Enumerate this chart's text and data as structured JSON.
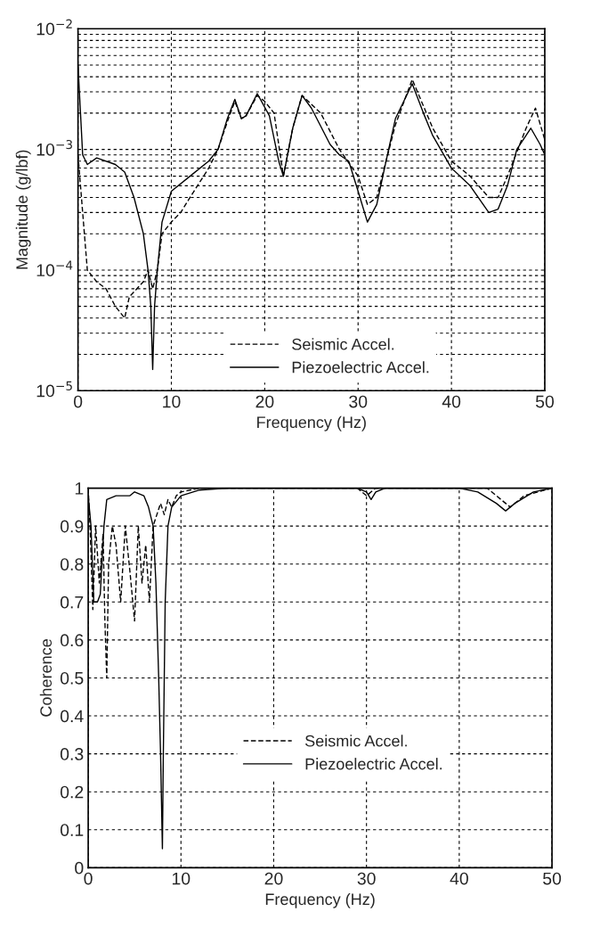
{
  "chart_data": [
    {
      "type": "line",
      "xlabel": "Frequency (Hz)",
      "ylabel": "Magnitude (g/lbf)",
      "log": "y",
      "xlim": [
        0,
        50
      ],
      "xticks": [
        0,
        10,
        20,
        30,
        40,
        50
      ],
      "ylim": [
        1e-05,
        0.01
      ],
      "yticks": [
        {
          "value": 1e-05,
          "label": "10$^{−5}$"
        },
        {
          "value": 2e-05,
          "label": null
        },
        {
          "value": 3e-05,
          "label": null
        },
        {
          "value": 4e-05,
          "label": null
        },
        {
          "value": 5e-05,
          "label": null
        },
        {
          "value": 6e-05,
          "label": null
        },
        {
          "value": 7e-05,
          "label": null
        },
        {
          "value": 8e-05,
          "label": null
        },
        {
          "value": 9e-05,
          "label": null
        },
        {
          "value": 0.0001,
          "label": "10$^{−4}$"
        },
        {
          "value": 0.0002,
          "label": null
        },
        {
          "value": 0.0003,
          "label": null
        },
        {
          "value": 0.0004,
          "label": null
        },
        {
          "value": 0.0005,
          "label": null
        },
        {
          "value": 0.0006,
          "label": null
        },
        {
          "value": 0.0007,
          "label": null
        },
        {
          "value": 0.0008,
          "label": null
        },
        {
          "value": 0.0009,
          "label": null
        },
        {
          "value": 0.001,
          "label": "10$^{−3}$"
        },
        {
          "value": 0.002,
          "label": null
        },
        {
          "value": 0.003,
          "label": null
        },
        {
          "value": 0.004,
          "label": null
        },
        {
          "value": 0.005,
          "label": null
        },
        {
          "value": 0.006,
          "label": null
        },
        {
          "value": 0.007,
          "label": null
        },
        {
          "value": 0.008,
          "label": null
        },
        {
          "value": 0.009,
          "label": null
        },
        {
          "value": 0.01,
          "label": "10$^{−2}$"
        }
      ],
      "grid": true,
      "legend": "bottom",
      "series": [
        {
          "name": "Seismic Accel.",
          "color": "#000000",
          "line_style": "dashed",
          "x": [
            0,
            1,
            2,
            3,
            4,
            5,
            5.5,
            7,
            7.5,
            8,
            8.5,
            9,
            10,
            11,
            12,
            14,
            15,
            16,
            16.8,
            17.5,
            18,
            19.2,
            20,
            21,
            22,
            23,
            24,
            26,
            28,
            30,
            31,
            32,
            34,
            35.8,
            38,
            40,
            42,
            44,
            45,
            46,
            48,
            49,
            50
          ],
          "values": [
            0.0009,
            0.0001,
            8e-05,
            7e-05,
            5e-05,
            4e-05,
            6e-05,
            8e-05,
            0.0001,
            7e-05,
            0.0001,
            0.0002,
            0.00025,
            0.0003,
            0.0004,
            0.0007,
            0.001,
            0.0017,
            0.0025,
            0.0018,
            0.0019,
            0.0028,
            0.0025,
            0.002,
            0.0006,
            0.0015,
            0.0028,
            0.002,
            0.001,
            0.0006,
            0.00035,
            0.0004,
            0.0016,
            0.0038,
            0.0015,
            0.0008,
            0.0006,
            0.0004,
            0.0004,
            0.0006,
            0.0015,
            0.0022,
            0.0012
          ]
        },
        {
          "name": "Piezoelectric Accel.",
          "color": "#000000",
          "line_style": "solid",
          "x": [
            0,
            0.5,
            1,
            2,
            4,
            5,
            6,
            7,
            7.5,
            7.8,
            8,
            8.2,
            8.5,
            9,
            10,
            12,
            14,
            15,
            16,
            16.8,
            17.5,
            18,
            19.2,
            20.5,
            21.5,
            22,
            23,
            24,
            25,
            27,
            28,
            29,
            30,
            31,
            32,
            33,
            34,
            35.8,
            37,
            38,
            40,
            42,
            44,
            45,
            46,
            47,
            48.5,
            49.5,
            50
          ],
          "values": [
            0.005,
            0.0009,
            0.00075,
            0.00085,
            0.00075,
            0.00065,
            0.0004,
            0.0002,
            0.0001,
            5e-05,
            1.5e-05,
            5e-05,
            0.0001,
            0.00025,
            0.00045,
            0.0006,
            0.0008,
            0.001,
            0.0018,
            0.0026,
            0.0018,
            0.0019,
            0.0029,
            0.0019,
            0.0008,
            0.0006,
            0.0015,
            0.0028,
            0.0022,
            0.0011,
            0.0009,
            0.0008,
            0.00045,
            0.00025,
            0.00035,
            0.0008,
            0.0018,
            0.0035,
            0.002,
            0.0013,
            0.0007,
            0.0005,
            0.0003,
            0.00032,
            0.0005,
            0.001,
            0.0015,
            0.0011,
            0.0009
          ]
        }
      ]
    },
    {
      "type": "line",
      "xlabel": "Frequency (Hz)",
      "ylabel": "Coherence",
      "xlim": [
        0,
        50
      ],
      "xticks": [
        0,
        10,
        20,
        30,
        40,
        50
      ],
      "ylim": [
        0,
        1
      ],
      "yticks": [
        0,
        0.1,
        0.2,
        0.3,
        0.4,
        0.5,
        0.6,
        0.7,
        0.8,
        0.9,
        1
      ],
      "grid": true,
      "legend": "center",
      "series": [
        {
          "name": "Seismic Accel.",
          "color": "#000000",
          "line_style": "dashed",
          "x": [
            0,
            0.2,
            0.5,
            0.8,
            1.2,
            1.6,
            1.8,
            2,
            2.2,
            2.6,
            3,
            3.5,
            4,
            4.5,
            5,
            5.4,
            5.8,
            6.2,
            6.6,
            7,
            7.4,
            7.8,
            8.2,
            8.6,
            9,
            9.5,
            10,
            12,
            29,
            30,
            31,
            43,
            44,
            45.5,
            47,
            50
          ],
          "values": [
            1.0,
            0.9,
            0.68,
            0.9,
            0.75,
            0.88,
            0.65,
            0.5,
            0.8,
            0.9,
            0.85,
            0.7,
            0.9,
            0.78,
            0.65,
            0.9,
            0.75,
            0.85,
            0.7,
            0.9,
            0.93,
            0.96,
            0.93,
            0.97,
            0.95,
            0.98,
            0.99,
            1.0,
            1.0,
            0.98,
            1.0,
            1.0,
            0.98,
            0.95,
            0.98,
            1.0
          ]
        },
        {
          "name": "Piezoelectric Accel.",
          "color": "#000000",
          "line_style": "solid",
          "x": [
            0,
            0.3,
            0.6,
            1,
            1.3,
            1.7,
            2,
            3,
            4.5,
            5,
            6,
            6.5,
            7,
            7.3,
            7.6,
            7.8,
            8,
            8.1,
            8.3,
            8.6,
            9,
            10,
            12,
            15,
            20,
            29,
            30,
            30.5,
            31,
            32,
            40,
            42,
            44,
            45,
            46,
            48,
            50
          ],
          "values": [
            0.98,
            0.9,
            0.7,
            0.7,
            0.72,
            0.9,
            0.97,
            0.98,
            0.98,
            0.99,
            0.98,
            0.95,
            0.9,
            0.75,
            0.5,
            0.3,
            0.05,
            0.3,
            0.7,
            0.9,
            0.95,
            0.98,
            0.995,
            1.0,
            1.0,
            1.0,
            0.99,
            0.97,
            0.99,
            1.0,
            1.0,
            0.99,
            0.96,
            0.94,
            0.96,
            0.99,
            1.0
          ]
        }
      ]
    }
  ]
}
